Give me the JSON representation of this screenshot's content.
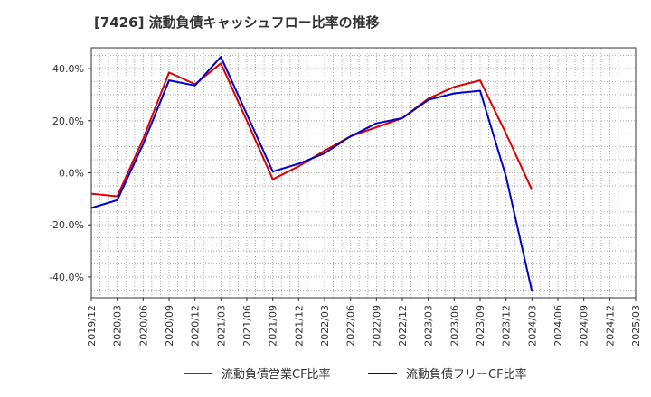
{
  "chart_data": {
    "type": "line",
    "title": "[7426]  流動負債キャッシュフロー比率の推移",
    "xlabel": "",
    "ylabel": "",
    "ylim": [
      -48,
      48
    ],
    "y_ticks": [
      40,
      20,
      0,
      -20,
      -40
    ],
    "y_tick_labels": [
      "40.0%",
      "20.0%",
      "0.0%",
      "-20.0%",
      "-40.0%"
    ],
    "categories": [
      "2019/12",
      "2020/03",
      "2020/06",
      "2020/09",
      "2020/12",
      "2021/03",
      "2021/06",
      "2021/09",
      "2021/12",
      "2022/03",
      "2022/06",
      "2022/09",
      "2022/12",
      "2023/03",
      "2023/06",
      "2023/09",
      "2023/12",
      "2024/03",
      "2024/06",
      "2024/09",
      "2024/12",
      "2025/03"
    ],
    "grid": true,
    "legend_position": "bottom-center",
    "series": [
      {
        "name": "流動負債営業CF比率",
        "color": "#e00000",
        "values": [
          -8.0,
          -9.0,
          13.0,
          38.5,
          34.0,
          42.0,
          20.0,
          -2.5,
          2.5,
          8.5,
          14.0,
          17.5,
          21.0,
          28.5,
          33.0,
          35.5,
          15.0,
          -6.5,
          null,
          null,
          null,
          null
        ]
      },
      {
        "name": "流動負債フリーCF比率",
        "color": "#0000cc",
        "values": [
          -13.5,
          -10.5,
          11.0,
          35.5,
          33.5,
          44.5,
          22.5,
          0.5,
          3.5,
          7.5,
          14.0,
          19.0,
          21.0,
          28.0,
          30.5,
          31.5,
          -1.5,
          -45.5,
          null,
          null,
          null,
          null
        ]
      }
    ]
  }
}
